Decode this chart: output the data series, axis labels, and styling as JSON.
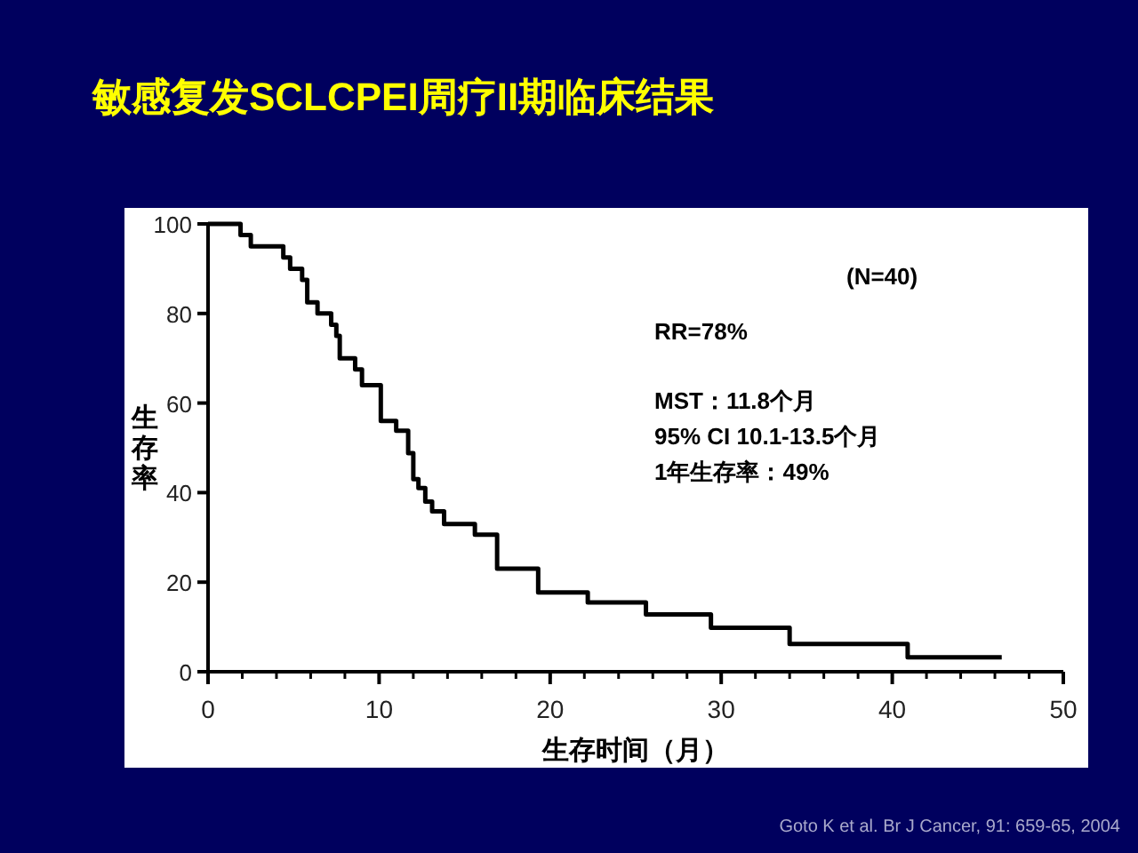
{
  "chart_data": {
    "type": "step",
    "title": "敏感复发SCLCPEI周疗II期临床结果",
    "xlabel": "生存时间（月）",
    "ylabel": "生存率",
    "x": [
      0,
      1.9,
      2.5,
      4.4,
      4.8,
      5.5,
      5.8,
      6.4,
      7.2,
      7.5,
      7.7,
      8.6,
      9.0,
      10.1,
      11.0,
      11.7,
      12.0,
      12.3,
      12.7,
      13.1,
      13.8,
      15.6,
      16.9,
      19.3,
      22.2,
      25.6,
      29.4,
      34.0,
      40.9,
      46.4
    ],
    "series": [
      {
        "color": "#000000",
        "values": [
          100,
          97.5,
          95,
          92.5,
          90,
          87.5,
          82.5,
          80,
          77.5,
          75,
          70,
          67.5,
          64,
          56,
          53.8,
          48.8,
          43,
          41,
          38,
          35.8,
          33,
          30.6,
          23,
          17.7,
          15.5,
          12.8,
          9.8,
          6.2,
          3.2,
          3.2
        ]
      }
    ],
    "xlim": [
      0,
      50
    ],
    "xticks": [
      0,
      10,
      20,
      30,
      40,
      50
    ],
    "ylim": [
      0,
      100
    ],
    "yticks": [
      0,
      20,
      40,
      60,
      80,
      100
    ],
    "annotations": [
      "(N=40)",
      "RR=78%",
      "MST：11.8个月",
      "95% CI 10.1-13.5个月",
      "1年生存率：49%",
      "Goto K et al. Br J Cancer, 91: 659-65, 2004"
    ]
  }
}
